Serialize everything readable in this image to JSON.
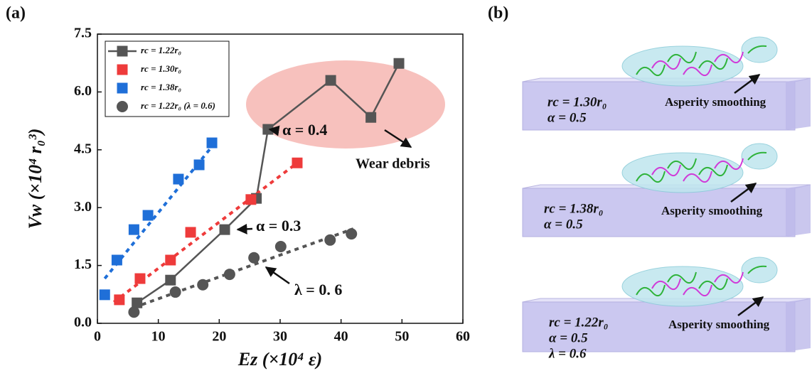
{
  "chart_data": {
    "type": "scatter",
    "panel_label": "(a)",
    "x_label": "Ez (×10⁴ ε)",
    "y_label": "Vw (×10⁴ r₀³)",
    "xlim": [
      0,
      60
    ],
    "ylim": [
      0,
      7.5
    ],
    "xticks": [
      0,
      10,
      20,
      30,
      40,
      50,
      60
    ],
    "yticks": [
      {
        "value": 0,
        "label": "0.0"
      },
      1.5,
      {
        "value": 3,
        "label": "3.0"
      },
      4.5,
      {
        "value": 6,
        "label": "6.0"
      },
      7.5
    ],
    "series": [
      {
        "name": "rc = 1.22r₀",
        "color": "#555555",
        "marker": "square",
        "line": true,
        "x": [
          6.5,
          12.0,
          20.9,
          26.1,
          28.0,
          38.3,
          44.9,
          49.5
        ],
        "values": [
          0.53,
          1.12,
          2.43,
          3.24,
          5.03,
          6.3,
          5.34,
          6.74
        ]
      },
      {
        "name": "rc = 1.30r₀",
        "color": "#ee3b3b",
        "marker": "square",
        "line": false,
        "x": [
          3.6,
          7.0,
          12.0,
          15.3,
          25.2,
          32.8
        ],
        "values": [
          0.61,
          1.16,
          1.64,
          2.36,
          3.21,
          4.16
        ],
        "fit_x": [
          2.7,
          32.8
        ],
        "fit_y": [
          0.55,
          4.16
        ]
      },
      {
        "name": "rc = 1.38r₀",
        "color": "#1f6fd8",
        "marker": "square",
        "line": false,
        "x": [
          1.2,
          3.2,
          6.0,
          8.3,
          13.3,
          16.7,
          18.8
        ],
        "values": [
          0.74,
          1.64,
          2.43,
          2.8,
          3.74,
          4.11,
          4.68
        ],
        "fit_x": [
          1.2,
          19.3
        ],
        "fit_y": [
          1.16,
          4.68
        ]
      },
      {
        "name": "rc = 1.22r₀ (λ = 0.6)",
        "color": "#555555",
        "marker": "circle",
        "line": false,
        "x": [
          6.0,
          12.8,
          17.3,
          21.7,
          25.7,
          30.1,
          38.2,
          41.7
        ],
        "values": [
          0.29,
          0.81,
          1.0,
          1.27,
          1.7,
          1.99,
          2.16,
          2.32
        ],
        "fit_x": [
          6.0,
          42.0
        ],
        "fit_y": [
          0.41,
          2.45
        ]
      }
    ],
    "annotations": [
      "α = 0.4",
      "α = 0.3",
      "λ = 0. 6",
      "Wear debris"
    ]
  },
  "panel_b": {
    "label": "(b)",
    "panels": [
      {
        "lines": [
          "rc = 1.30r₀",
          "α = 0.5"
        ],
        "caption": "Asperity smoothing"
      },
      {
        "lines": [
          "rc = 1.38r₀",
          "α = 0.5"
        ],
        "caption": "Asperity smoothing"
      },
      {
        "lines": [
          "rc = 1.22r₀",
          "α = 0.5",
          "λ = 0.6"
        ],
        "caption": "Asperity smoothing"
      }
    ]
  }
}
